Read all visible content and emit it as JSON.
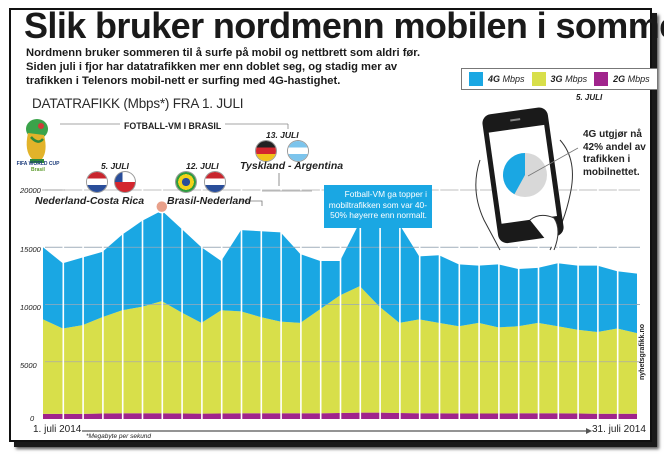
{
  "header": {
    "title": "Slik bruker nordmenn mobilen i sommer",
    "intro": "Nordmenn bruker sommeren til å surfe på mobil og nettbrett som aldri før. Siden juli i fjor har datatrafikken mer enn doblet seg, og stadig mer av trafikken i Telenors mobil-nett er surfing med 4G-hastighet.",
    "subtitle": "DATATRAFIKK (Mbps*) FRA 1. JULI"
  },
  "legend": [
    {
      "key": "4G",
      "unit": "Mbps",
      "color": "#1aa7e3"
    },
    {
      "key": "3G",
      "unit": "Mbps",
      "color": "#d8df4a"
    },
    {
      "key": "2G",
      "unit": "Mbps",
      "color": "#a0248c"
    }
  ],
  "events": {
    "section_label": "FOTBALL-VM I BRASIL",
    "logo_text": "FIFA WORLD CUP",
    "logo_subtext": "Brasil",
    "items": [
      {
        "date": "5. JULI",
        "match": "Nederland-Costa Rica",
        "day": 5
      },
      {
        "date": "12. JULI",
        "match": "Brasil-Nederland",
        "day": 12
      },
      {
        "date": "13. JULI",
        "match": "Tyskland - Argentina",
        "day": 13
      }
    ],
    "note": "Fotball-VM ga topper i mobiltrafikken som var 40-50% høyerre enn normalt."
  },
  "phone": {
    "date": "5. JULI",
    "note": "4G utgjør nå 42% andel av trafikken i mobilnettet.",
    "share_4g_percent": 42
  },
  "axis": {
    "x_start": "1. juli 2014",
    "x_end": "31. juli 2014",
    "footnote": "*Megabyte per sekund"
  },
  "credit": "nyhetsgrafikk.no",
  "chart_data": {
    "type": "area",
    "stacked": true,
    "title": "DATATRAFIKK (Mbps*) FRA 1. JULI",
    "xlabel": "",
    "ylabel": "Mbps",
    "x": [
      1,
      2,
      3,
      4,
      5,
      6,
      7,
      8,
      9,
      10,
      11,
      12,
      13,
      14,
      15,
      16,
      17,
      18,
      19,
      20,
      21,
      22,
      23,
      24,
      25,
      26,
      27,
      28,
      29,
      30,
      31
    ],
    "ylim": [
      0,
      20000
    ],
    "yticks": [
      0,
      5000,
      10000,
      15000,
      20000
    ],
    "ytick_labels": [
      "0",
      "5000",
      "10000",
      "15000",
      "20000"
    ],
    "grid": true,
    "legend_position": "top-right",
    "series": [
      {
        "name": "2G Mbps",
        "color": "#a0248c",
        "values": [
          450,
          450,
          450,
          480,
          500,
          500,
          500,
          480,
          470,
          480,
          500,
          500,
          500,
          500,
          500,
          520,
          560,
          560,
          520,
          500,
          500,
          480,
          480,
          480,
          500,
          500,
          500,
          480,
          460,
          460,
          460
        ]
      },
      {
        "name": "3G Mbps",
        "color": "#d8df4a",
        "values": [
          8250,
          7450,
          7750,
          8420,
          9000,
          9300,
          9800,
          8820,
          7930,
          9020,
          8900,
          8400,
          8000,
          7900,
          9100,
          10280,
          11040,
          9240,
          7880,
          8200,
          7900,
          7620,
          7920,
          7520,
          7600,
          7900,
          7600,
          7320,
          7140,
          7440,
          7040
        ]
      },
      {
        "name": "4G Mbps",
        "color": "#1aa7e3",
        "values": [
          6300,
          5700,
          5900,
          5700,
          6600,
          7500,
          7900,
          7300,
          6600,
          4300,
          7100,
          7500,
          7800,
          6000,
          4200,
          3000,
          5600,
          9400,
          8600,
          5500,
          5900,
          5400,
          5000,
          5500,
          5000,
          4800,
          5500,
          5600,
          5800,
          5000,
          5200
        ]
      }
    ]
  }
}
